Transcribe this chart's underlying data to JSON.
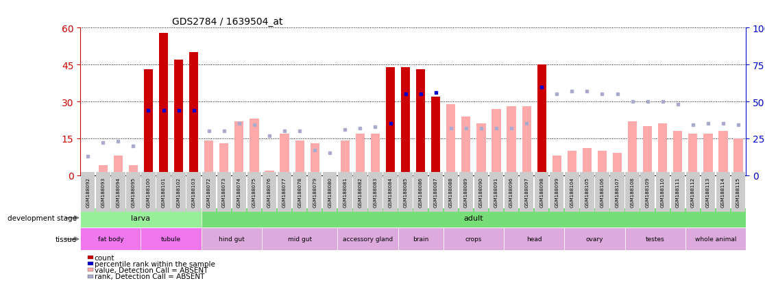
{
  "title": "GDS2784 / 1639504_at",
  "samples": [
    "GSM188092",
    "GSM188093",
    "GSM188094",
    "GSM188095",
    "GSM188100",
    "GSM188101",
    "GSM188102",
    "GSM188103",
    "GSM188072",
    "GSM188073",
    "GSM188074",
    "GSM188075",
    "GSM188076",
    "GSM188077",
    "GSM188078",
    "GSM188079",
    "GSM188080",
    "GSM188081",
    "GSM188082",
    "GSM188083",
    "GSM188084",
    "GSM188085",
    "GSM188086",
    "GSM188087",
    "GSM188088",
    "GSM188089",
    "GSM188090",
    "GSM188091",
    "GSM188096",
    "GSM188097",
    "GSM188098",
    "GSM188099",
    "GSM188104",
    "GSM188105",
    "GSM188106",
    "GSM188107",
    "GSM188108",
    "GSM188109",
    "GSM188110",
    "GSM188111",
    "GSM188112",
    "GSM188113",
    "GSM188114",
    "GSM188115"
  ],
  "count_values": [
    1,
    4,
    8,
    4,
    43,
    58,
    47,
    50,
    14,
    13,
    22,
    23,
    2,
    17,
    14,
    13,
    1,
    14,
    17,
    17,
    44,
    44,
    43,
    32,
    29,
    24,
    21,
    27,
    28,
    28,
    45,
    8,
    10,
    11,
    10,
    9,
    22,
    20,
    21,
    18,
    17,
    17,
    18,
    15
  ],
  "rank_values": [
    13,
    22,
    23,
    20,
    44,
    44,
    44,
    44,
    30,
    30,
    35,
    34,
    27,
    30,
    30,
    17,
    15,
    31,
    32,
    33,
    35,
    55,
    55,
    56,
    32,
    32,
    32,
    32,
    32,
    35,
    60,
    55,
    57,
    57,
    55,
    55,
    50,
    50,
    50,
    48,
    34,
    35,
    35,
    34
  ],
  "count_present": [
    false,
    false,
    false,
    false,
    true,
    true,
    true,
    true,
    false,
    false,
    false,
    false,
    false,
    false,
    false,
    false,
    false,
    false,
    false,
    false,
    true,
    true,
    true,
    true,
    false,
    false,
    false,
    false,
    false,
    false,
    true,
    false,
    false,
    false,
    false,
    false,
    false,
    false,
    false,
    false,
    false,
    false,
    false,
    false
  ],
  "rank_present": [
    false,
    false,
    false,
    false,
    true,
    true,
    true,
    true,
    false,
    false,
    false,
    false,
    false,
    false,
    false,
    false,
    false,
    false,
    false,
    false,
    true,
    true,
    true,
    true,
    false,
    false,
    false,
    false,
    false,
    false,
    true,
    false,
    false,
    false,
    false,
    false,
    false,
    false,
    false,
    false,
    false,
    false,
    false,
    false
  ],
  "ylim_left": [
    0,
    60
  ],
  "ylim_right": [
    0,
    100
  ],
  "yticks_left": [
    0,
    15,
    30,
    45,
    60
  ],
  "yticks_right": [
    0,
    25,
    50,
    75,
    100
  ],
  "development_stages": [
    {
      "label": "larva",
      "start": 0,
      "end": 8
    },
    {
      "label": "adult",
      "start": 8,
      "end": 44
    }
  ],
  "tissues": [
    {
      "label": "fat body",
      "start": 0,
      "end": 4
    },
    {
      "label": "tubule",
      "start": 4,
      "end": 8
    },
    {
      "label": "hind gut",
      "start": 8,
      "end": 12
    },
    {
      "label": "mid gut",
      "start": 12,
      "end": 17
    },
    {
      "label": "accessory gland",
      "start": 17,
      "end": 21
    },
    {
      "label": "brain",
      "start": 21,
      "end": 24
    },
    {
      "label": "crops",
      "start": 24,
      "end": 28
    },
    {
      "label": "head",
      "start": 28,
      "end": 32
    },
    {
      "label": "ovary",
      "start": 32,
      "end": 36
    },
    {
      "label": "testes",
      "start": 36,
      "end": 40
    },
    {
      "label": "whole animal",
      "start": 40,
      "end": 44
    }
  ],
  "colors": {
    "count_present": "#cc0000",
    "count_absent": "#ffaaaa",
    "rank_present": "#0000cc",
    "rank_absent": "#aaaacc",
    "larva_bg": "#99ee99",
    "adult_bg": "#77dd77",
    "tissue_magenta": "#ee77ee",
    "tissue_light": "#ddaadd",
    "tick_bg": "#cccccc",
    "right_axis_color": "#0000cc",
    "left_axis_color": "#cc0000"
  },
  "tissue_colors": [
    "#ee77ee",
    "#ee77ee",
    "#ddaadd",
    "#ddaadd",
    "#ddaadd",
    "#ddaadd",
    "#ddaadd",
    "#ddaadd",
    "#ddaadd",
    "#ddaadd",
    "#ddaadd"
  ],
  "legend_items": [
    {
      "color": "#cc0000",
      "label": "count"
    },
    {
      "color": "#0000cc",
      "label": "percentile rank within the sample"
    },
    {
      "color": "#ffaaaa",
      "label": "value, Detection Call = ABSENT"
    },
    {
      "color": "#aaaacc",
      "label": "rank, Detection Call = ABSENT"
    }
  ]
}
